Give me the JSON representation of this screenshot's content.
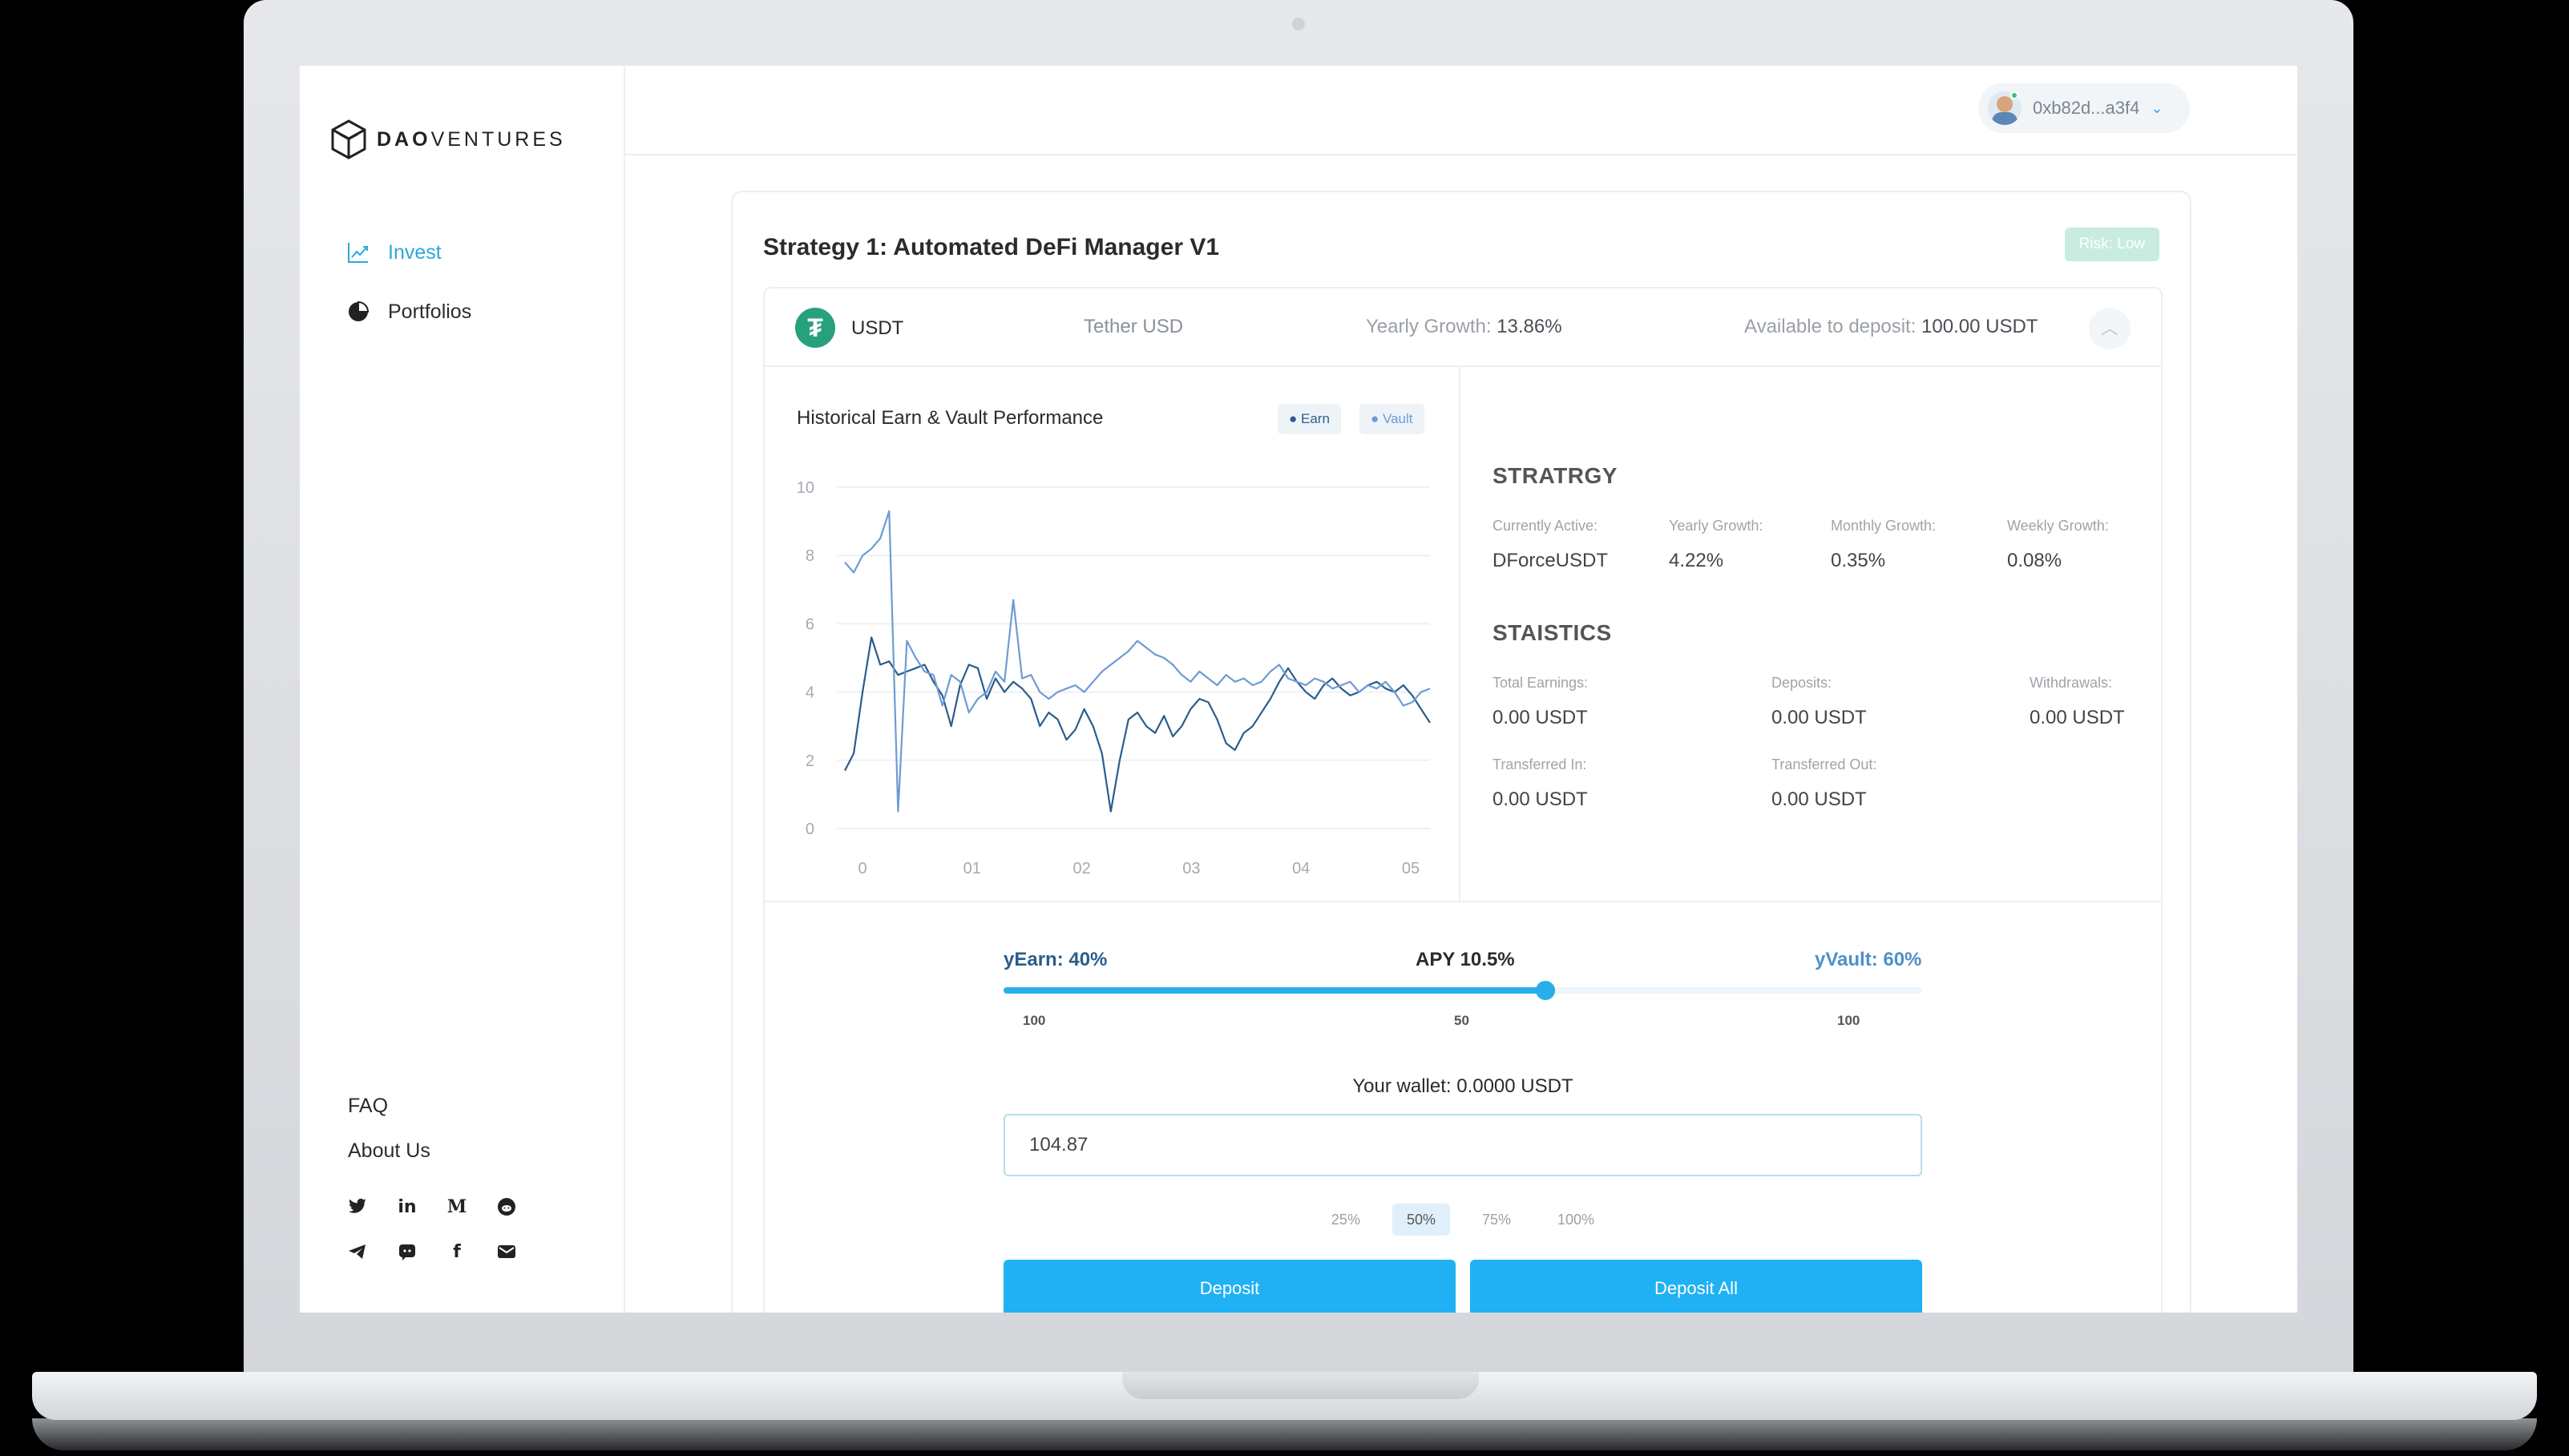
{
  "brand": {
    "logo_text_bold": "DAO",
    "logo_text_rest": "VENTURES"
  },
  "sidebar": {
    "nav": [
      {
        "label": "Invest",
        "icon": "trend-chart-icon",
        "active": true
      },
      {
        "label": "Portfolios",
        "icon": "pie-chart-icon",
        "active": false
      }
    ],
    "links": [
      "FAQ",
      "About Us"
    ],
    "socials": [
      "twitter-icon",
      "linkedin-icon",
      "medium-icon",
      "reddit-icon",
      "telegram-icon",
      "discord-icon",
      "facebook-icon",
      "email-icon"
    ]
  },
  "header": {
    "wallet_address": "0xb82d...a3f4"
  },
  "strategy": {
    "title": "Strategy 1: Automated DeFi Manager V1",
    "risk": "Risk: Low",
    "asset": {
      "symbol": "USDT",
      "name": "Tether USD",
      "growth_label": "Yearly Growth:",
      "growth_value": "13.86%",
      "avail_label": "Available to deposit:",
      "avail_value": "100.00 USDT"
    },
    "chart": {
      "title": "Historical Earn & Vault Performance",
      "legend_earn": "Earn",
      "legend_vault": "Vault"
    },
    "strategy_section": {
      "heading": "STRATRGY",
      "items": [
        {
          "label": "Currently Active:",
          "value": "DForceUSDT"
        },
        {
          "label": "Yearly Growth:",
          "value": "4.22%"
        },
        {
          "label": "Monthly Growth:",
          "value": "0.35%"
        },
        {
          "label": "Weekly Growth:",
          "value": "0.08%"
        }
      ]
    },
    "statistics": {
      "heading": "STAISTICS",
      "items": [
        {
          "label": "Total Earnings:",
          "value": "0.00 USDT"
        },
        {
          "label": "Deposits:",
          "value": "0.00 USDT"
        },
        {
          "label": "Withdrawals:",
          "value": "0.00 USDT"
        },
        {
          "label": "Transferred In:",
          "value": "0.00 USDT"
        },
        {
          "label": "Transferred Out:",
          "value": "0.00 USDT"
        }
      ]
    },
    "allocation": {
      "earn_label": "yEarn: 40%",
      "apy_label": "APY 10.5%",
      "vault_label": "yVault: 60%",
      "slider_fraction": 0.59,
      "tick_left": "100",
      "tick_mid": "50",
      "tick_right": "100"
    },
    "wallet_label": "Your wallet: 0.0000 USDT",
    "amount_value": "104.87",
    "percent_options": [
      "25%",
      "50%",
      "75%",
      "100%"
    ],
    "selected_percent": "50%",
    "deposit_label": "Deposit",
    "deposit_all_label": "Deposit All"
  },
  "colors": {
    "accent": "#2ea8d8",
    "button": "#20b1f4",
    "earn_line": "#2a5d8c",
    "vault_line": "#6f9bd3",
    "risk_badge": "#c8ece0"
  },
  "chart_data": {
    "type": "line",
    "title": "Historical Earn & Vault Performance",
    "x_tick_labels": [
      "0",
      "01",
      "02",
      "03",
      "04",
      "05"
    ],
    "ylim": [
      0,
      10
    ],
    "y_ticks": [
      0,
      2,
      4,
      6,
      8,
      10
    ],
    "grid": true,
    "legend": "top-right",
    "series": [
      {
        "name": "Earn",
        "color": "#2a5d8c",
        "values": [
          1.7,
          2.2,
          4.0,
          5.6,
          4.8,
          4.9,
          4.5,
          4.6,
          4.7,
          4.8,
          4.3,
          3.9,
          3.0,
          4.2,
          4.8,
          4.7,
          3.8,
          4.4,
          4.0,
          4.3,
          4.1,
          3.8,
          3.0,
          3.4,
          3.2,
          2.6,
          2.9,
          3.5,
          3.0,
          2.2,
          0.5,
          2.0,
          3.2,
          3.4,
          3.0,
          2.8,
          3.3,
          2.7,
          3.0,
          3.5,
          3.8,
          3.7,
          3.2,
          2.5,
          2.3,
          2.8,
          3.0,
          3.4,
          3.8,
          4.3,
          4.7,
          4.3,
          4.0,
          3.8,
          4.2,
          4.4,
          4.1,
          3.9,
          4.0,
          4.2,
          4.3,
          4.1,
          4.0,
          4.2,
          3.9,
          3.5,
          3.1
        ]
      },
      {
        "name": "Vault",
        "color": "#6f9bd3",
        "values": [
          7.8,
          7.5,
          8.0,
          8.2,
          8.5,
          9.3,
          0.5,
          5.5,
          5.0,
          4.6,
          4.5,
          3.6,
          4.5,
          4.3,
          3.4,
          3.8,
          4.0,
          4.6,
          4.3,
          6.7,
          4.4,
          4.5,
          4.0,
          3.8,
          4.0,
          4.1,
          4.2,
          4.0,
          4.3,
          4.6,
          4.8,
          5.0,
          5.2,
          5.5,
          5.3,
          5.1,
          5.0,
          4.8,
          4.5,
          4.3,
          4.6,
          4.4,
          4.2,
          4.5,
          4.3,
          4.4,
          4.2,
          4.3,
          4.6,
          4.8,
          4.4,
          4.3,
          4.2,
          4.4,
          4.3,
          4.1,
          4.2,
          4.3,
          4.0,
          4.2,
          4.1,
          4.3,
          4.0,
          3.6,
          3.7,
          4.0,
          4.1
        ]
      }
    ]
  }
}
